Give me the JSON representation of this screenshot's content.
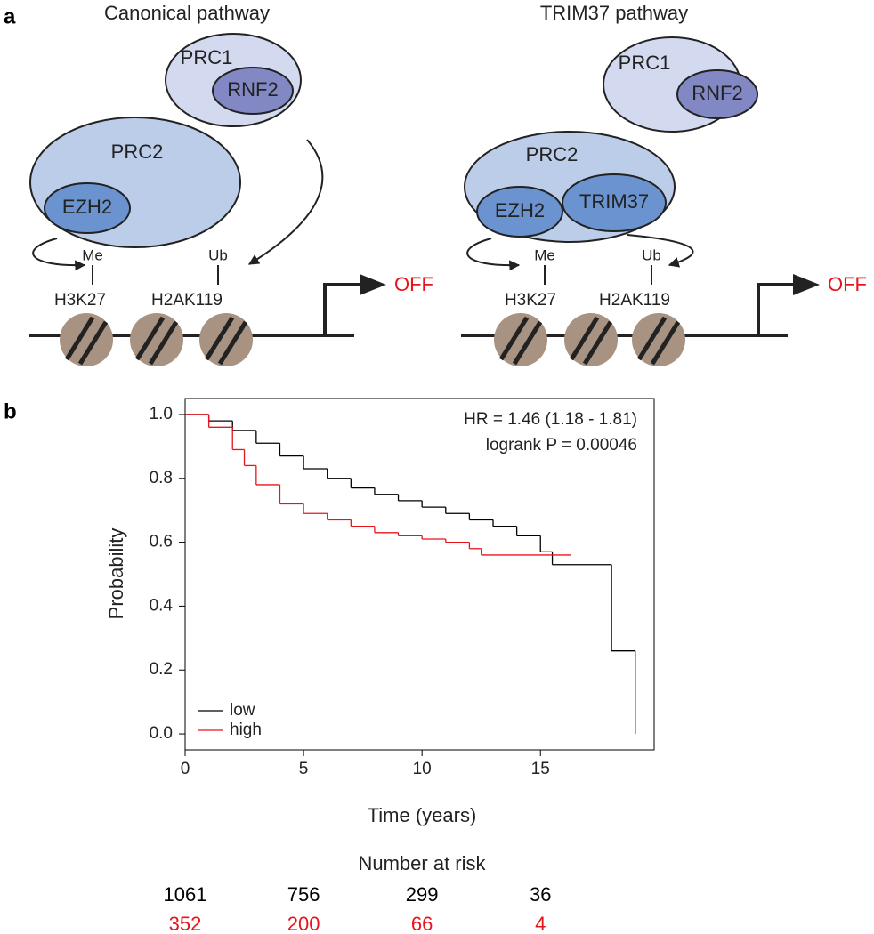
{
  "diagram": {
    "panel_label": "a",
    "left": {
      "title": "Canonical pathway",
      "prc1": "PRC1",
      "rnf2": "RNF2",
      "prc2": "PRC2",
      "ezh2": "EZH2",
      "me": "Me",
      "ub": "Ub",
      "h3k27": "H3K27",
      "h2ak119": "H2AK119",
      "off": "OFF"
    },
    "right": {
      "title": "TRIM37 pathway",
      "prc1": "PRC1",
      "rnf2": "RNF2",
      "prc2": "PRC2",
      "ezh2": "EZH2",
      "trim37": "TRIM37",
      "me": "Me",
      "ub": "Ub",
      "h3k27": "H3K27",
      "h2ak119": "H2AK119",
      "off": "OFF"
    }
  },
  "chart_data": {
    "type": "step",
    "panel_label": "b",
    "x_label": "Time (years)",
    "y_label": "Probability",
    "annotations": [
      "HR = 1.46 (1.18 - 1.81)",
      "logrank P = 0.00046"
    ],
    "xlim": [
      0,
      19.8
    ],
    "ylim": [
      -0.05,
      1.05
    ],
    "xticks": [
      0,
      5,
      10,
      15
    ],
    "yticks": [
      {
        "value": 0,
        "label": "0.0"
      },
      {
        "value": 0.2,
        "label": "0.2"
      },
      {
        "value": 0.4,
        "label": "0.4"
      },
      {
        "value": 0.6,
        "label": "0.6"
      },
      {
        "value": 0.8,
        "label": "0.8"
      },
      {
        "value": 1,
        "label": "1.0"
      }
    ],
    "legend": "lower left",
    "series": [
      {
        "name": "low",
        "color": "#000000",
        "x": [
          0,
          1,
          2,
          3,
          4,
          5,
          6,
          7,
          8,
          9,
          10,
          11,
          12,
          13,
          14,
          15,
          15.5,
          18,
          19
        ],
        "values": [
          1.0,
          0.98,
          0.95,
          0.91,
          0.87,
          0.83,
          0.8,
          0.77,
          0.75,
          0.73,
          0.71,
          0.69,
          0.67,
          0.65,
          0.62,
          0.57,
          0.53,
          0.26,
          0.0
        ]
      },
      {
        "name": "high",
        "color": "#e8141c",
        "x": [
          0,
          1,
          2,
          2.5,
          3,
          4,
          5,
          6,
          7,
          8,
          9,
          10,
          11,
          12,
          12.5,
          16.3
        ],
        "values": [
          1.0,
          0.96,
          0.89,
          0.84,
          0.78,
          0.72,
          0.69,
          0.67,
          0.65,
          0.63,
          0.62,
          0.61,
          0.6,
          0.58,
          0.56,
          0.56
        ]
      }
    ],
    "risk_table": {
      "title": "Number at risk",
      "rows": [
        [
          1061,
          756,
          299,
          36
        ],
        [
          352,
          200,
          66,
          4
        ]
      ]
    }
  }
}
